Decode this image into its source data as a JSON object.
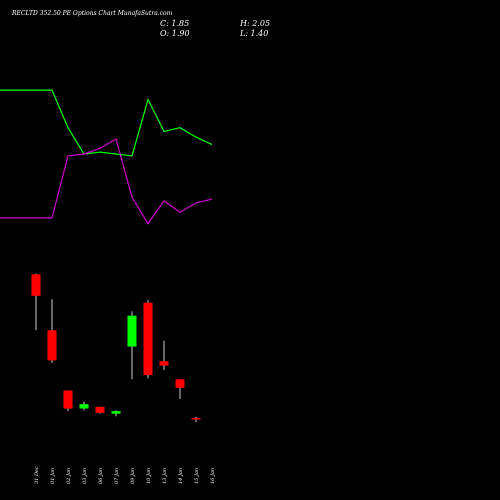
{
  "chart_data": {
    "type": "candlestick",
    "title": "RECLTD 352.50 PE Options Chart MunafaSutra.com",
    "ohlc_readout": {
      "close_label": "C: 1.85",
      "high_label": "H: 2.05",
      "open_label": "O: 1.90",
      "low_label": "L: 1.40"
    },
    "colors": {
      "background": "#000000",
      "up": "#00ff00",
      "down": "#ff0000",
      "wick": "#ffffff",
      "line_1": "#00ff00",
      "line_2": "#cc00cc"
    },
    "price_range": [
      1.2,
      20.5
    ],
    "categories": [
      "31 Dec",
      "01 Jan",
      "02 Jan",
      "03 Jan",
      "06 Jan",
      "07 Jan",
      "09 Jan",
      "10 Jan",
      "13 Jan",
      "14 Jan",
      "15 Jan",
      "16 Jan"
    ],
    "candles": [
      {
        "date": "31 Dec",
        "open": 18.6,
        "high": 18.7,
        "low": 12.1,
        "close": 16.1
      },
      {
        "date": "01 Jan",
        "open": 12.1,
        "high": 15.7,
        "low": 8.3,
        "close": 8.6
      },
      {
        "date": "02 Jan",
        "open": 5.1,
        "high": 5.1,
        "low": 2.7,
        "close": 3.0
      },
      {
        "date": "03 Jan",
        "open": 3.0,
        "high": 3.8,
        "low": 2.8,
        "close": 3.5
      },
      {
        "date": "06 Jan",
        "open": 3.2,
        "high": 3.2,
        "low": 2.4,
        "close": 2.5
      },
      {
        "date": "07 Jan",
        "open": 2.4,
        "high": 2.8,
        "low": 2.1,
        "close": 2.7
      },
      {
        "date": "09 Jan",
        "open": 10.2,
        "high": 14.3,
        "low": 6.4,
        "close": 13.8
      },
      {
        "date": "10 Jan",
        "open": 15.3,
        "high": 15.6,
        "low": 6.5,
        "close": 6.9
      },
      {
        "date": "13 Jan",
        "open": 8.5,
        "high": 10.9,
        "low": 7.5,
        "close": 8.0
      },
      {
        "date": "14 Jan",
        "open": 6.4,
        "high": 6.4,
        "low": 4.1,
        "close": 5.4
      },
      {
        "date": "15 Jan",
        "open": 1.9,
        "high": 2.05,
        "low": 1.4,
        "close": 1.85
      }
    ],
    "lines_range": [
      0,
      100
    ],
    "lines": [
      {
        "color": "#00ff00",
        "values": [
          84,
          84,
          64,
          50,
          51,
          50,
          49,
          79,
          62,
          64,
          59,
          55
        ]
      },
      {
        "color": "#cc00cc",
        "values": [
          16,
          16,
          49,
          50,
          53,
          58,
          27,
          13,
          25,
          19,
          24,
          26
        ]
      }
    ]
  }
}
